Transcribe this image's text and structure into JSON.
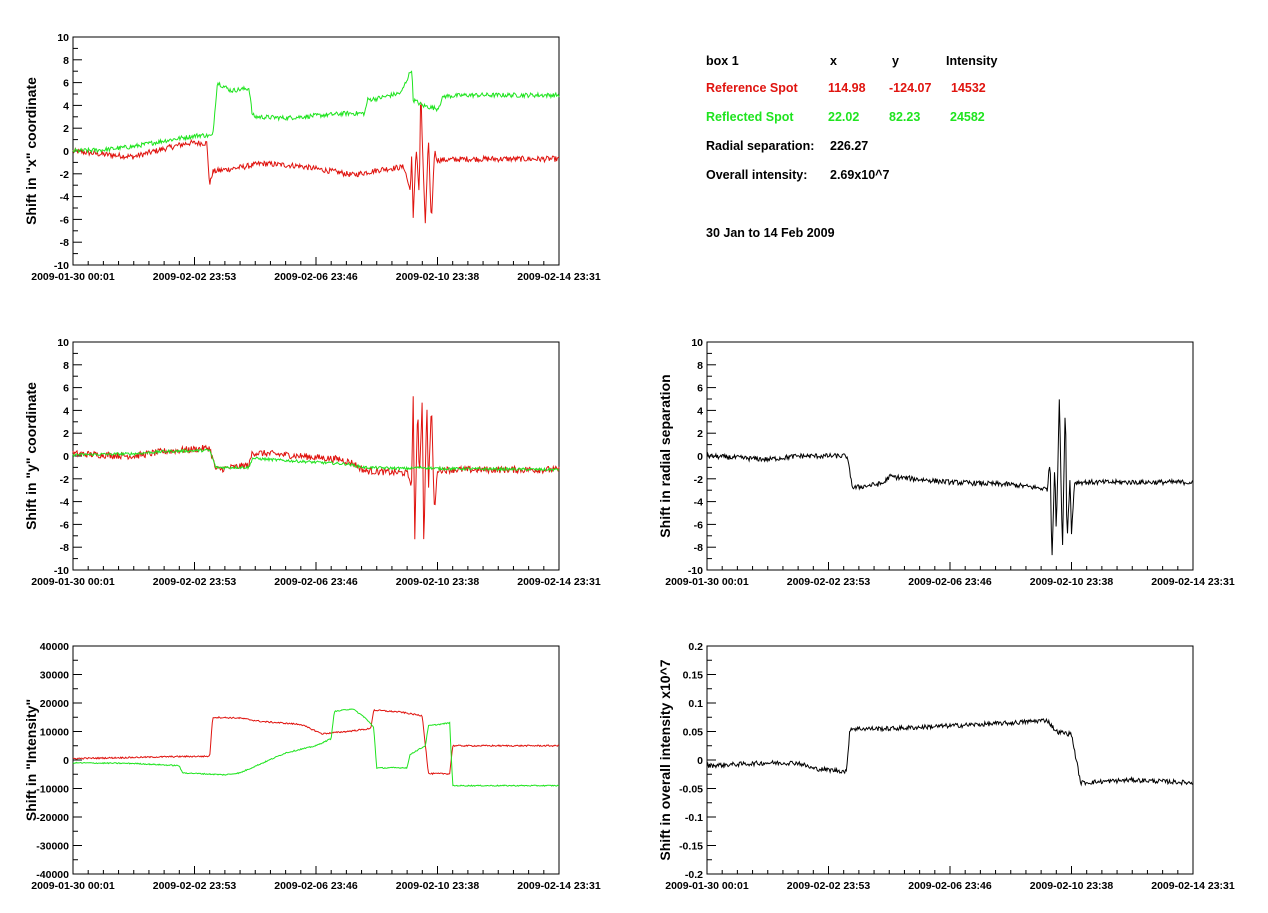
{
  "colors": {
    "reference": "#e0140f",
    "reflected": "#1fe41f",
    "axis": "#000000",
    "background": "#ffffff"
  },
  "info": {
    "box_label": "box 1",
    "col_x": "x",
    "col_y": "y",
    "col_intensity": "Intensity",
    "reference": {
      "label": "Reference Spot",
      "x": "114.98",
      "y": "-124.07",
      "intensity": "14532"
    },
    "reflected": {
      "label": "Reflected Spot",
      "x": "22.02",
      "y": "82.23",
      "intensity": "24582"
    },
    "radial_label": "Radial separation:",
    "radial_value": "226.27",
    "overall_label": "Overall intensity:",
    "overall_value": "2.69x10^7",
    "date_range": "30 Jan to 14 Feb 2009"
  },
  "x_tick_labels": [
    "2009-01-30 00:01",
    "2009-02-02 23:53",
    "2009-02-06 23:46",
    "2009-02-10 23:38",
    "2009-02-14 23:31"
  ],
  "chart_data": [
    {
      "id": "x-shift",
      "type": "line",
      "ylabel": "Shift in \"x\" coordinate",
      "ylim": [
        -10,
        10
      ],
      "y_ticks": [
        -10,
        -8,
        -6,
        -4,
        -2,
        0,
        2,
        4,
        6,
        8,
        10
      ],
      "xlim": [
        0,
        16
      ],
      "series": [
        {
          "name": "Reference Spot",
          "color": "#e0140f",
          "noise": 0.25,
          "points": [
            [
              0,
              0
            ],
            [
              1,
              -0.3
            ],
            [
              2,
              -0.5
            ],
            [
              3,
              0.2
            ],
            [
              3.8,
              0.7
            ],
            [
              4.4,
              0.7
            ],
            [
              4.5,
              -3.0
            ],
            [
              4.6,
              -1.8
            ],
            [
              5.6,
              -1.4
            ],
            [
              6.2,
              -1.1
            ],
            [
              7.4,
              -1.3
            ],
            [
              8.8,
              -1.9
            ],
            [
              9.2,
              -2.1
            ],
            [
              10.2,
              -1.6
            ],
            [
              10.9,
              -1.4
            ],
            [
              11.1,
              -3.5
            ],
            [
              11.15,
              -0.3
            ],
            [
              11.2,
              -6.0
            ],
            [
              11.3,
              0.4
            ],
            [
              11.4,
              -4.0
            ],
            [
              11.45,
              6.0
            ],
            [
              11.5,
              0.5
            ],
            [
              11.6,
              -6.3
            ],
            [
              11.7,
              1.0
            ],
            [
              11.8,
              -6.4
            ],
            [
              11.9,
              0.0
            ],
            [
              12.0,
              -0.8
            ],
            [
              13,
              -0.7
            ],
            [
              16,
              -0.7
            ]
          ]
        },
        {
          "name": "Reflected Spot",
          "color": "#1fe41f",
          "noise": 0.2,
          "points": [
            [
              0,
              0
            ],
            [
              1,
              0.1
            ],
            [
              2,
              0.4
            ],
            [
              3,
              0.9
            ],
            [
              4.2,
              1.4
            ],
            [
              4.6,
              1.3
            ],
            [
              4.75,
              6.0
            ],
            [
              5.2,
              5.3
            ],
            [
              5.8,
              5.5
            ],
            [
              5.9,
              3.2
            ],
            [
              6,
              3.0
            ],
            [
              7,
              2.9
            ],
            [
              9,
              3.3
            ],
            [
              9.6,
              3.3
            ],
            [
              9.7,
              4.5
            ],
            [
              10,
              4.6
            ],
            [
              10.8,
              5.1
            ],
            [
              11.15,
              7.2
            ],
            [
              11.2,
              4.5
            ],
            [
              11.5,
              4.0
            ],
            [
              12,
              3.7
            ],
            [
              12.2,
              4.8
            ],
            [
              13,
              4.9
            ],
            [
              16,
              4.9
            ]
          ]
        }
      ]
    },
    {
      "id": "y-shift",
      "type": "line",
      "ylabel": "Shift in \"y\" coordinate",
      "ylim": [
        -10,
        10
      ],
      "y_ticks": [
        -10,
        -8,
        -6,
        -4,
        -2,
        0,
        2,
        4,
        6,
        8,
        10
      ],
      "xlim": [
        0,
        16
      ],
      "series": [
        {
          "name": "Reference Spot",
          "color": "#e0140f",
          "noise": 0.3,
          "points": [
            [
              0,
              0.2
            ],
            [
              1,
              0.1
            ],
            [
              2,
              0.0
            ],
            [
              3,
              0.4
            ],
            [
              4.5,
              0.7
            ],
            [
              4.7,
              -1.2
            ],
            [
              5.8,
              -0.8
            ],
            [
              5.9,
              0.3
            ],
            [
              7,
              0.1
            ],
            [
              8.8,
              -0.3
            ],
            [
              9.2,
              -0.6
            ],
            [
              9.6,
              -1.3
            ],
            [
              11,
              -1.5
            ],
            [
              11.15,
              -2.5
            ],
            [
              11.2,
              5.5
            ],
            [
              11.25,
              -7.5
            ],
            [
              11.35,
              4.5
            ],
            [
              11.4,
              -2.0
            ],
            [
              11.5,
              5.0
            ],
            [
              11.55,
              -8.0
            ],
            [
              11.65,
              4.8
            ],
            [
              11.7,
              -3.0
            ],
            [
              11.8,
              4.5
            ],
            [
              11.9,
              -5.0
            ],
            [
              12,
              -1.2
            ],
            [
              16,
              -1.2
            ]
          ]
        },
        {
          "name": "Reflected Spot",
          "color": "#1fe41f",
          "noise": 0.12,
          "points": [
            [
              0,
              0.1
            ],
            [
              2,
              0.2
            ],
            [
              3,
              0.4
            ],
            [
              4.5,
              0.5
            ],
            [
              4.7,
              -1.0
            ],
            [
              5.8,
              -1.0
            ],
            [
              5.9,
              -0.2
            ],
            [
              7,
              -0.4
            ],
            [
              9,
              -0.7
            ],
            [
              9.6,
              -1.0
            ],
            [
              11,
              -1.1
            ],
            [
              11.5,
              -1.0
            ],
            [
              12,
              -1.1
            ],
            [
              16,
              -1.2
            ]
          ]
        }
      ]
    },
    {
      "id": "radial-shift",
      "type": "line",
      "ylabel": "Shift in radial separation",
      "ylim": [
        -10,
        10
      ],
      "y_ticks": [
        -10,
        -8,
        -6,
        -4,
        -2,
        0,
        2,
        4,
        6,
        8,
        10
      ],
      "xlim": [
        0,
        16
      ],
      "series": [
        {
          "name": "",
          "color": "#000000",
          "noise": 0.22,
          "points": [
            [
              0,
              0
            ],
            [
              2,
              -0.3
            ],
            [
              3,
              0.0
            ],
            [
              4.6,
              0.0
            ],
            [
              4.8,
              -2.8
            ],
            [
              5.8,
              -2.4
            ],
            [
              6,
              -1.8
            ],
            [
              8,
              -2.3
            ],
            [
              10,
              -2.5
            ],
            [
              11.2,
              -2.9
            ],
            [
              11.3,
              -0.3
            ],
            [
              11.35,
              -9.5
            ],
            [
              11.45,
              -0.5
            ],
            [
              11.5,
              -7.0
            ],
            [
              11.6,
              5.0
            ],
            [
              11.7,
              -8.5
            ],
            [
              11.8,
              5.2
            ],
            [
              11.85,
              -7.5
            ],
            [
              11.95,
              -2.0
            ],
            [
              12,
              -6.8
            ],
            [
              12.1,
              -2.3
            ],
            [
              13,
              -2.3
            ],
            [
              16,
              -2.3
            ]
          ]
        }
      ]
    },
    {
      "id": "intensity-shift",
      "type": "line",
      "ylabel": "Shift in \"Intensity\"",
      "ylim": [
        -40000,
        40000
      ],
      "y_ticks": [
        -40000,
        -30000,
        -20000,
        -10000,
        0,
        10000,
        20000,
        30000,
        40000
      ],
      "xlim": [
        0,
        16
      ],
      "series": [
        {
          "name": "Reference Spot",
          "color": "#e0140f",
          "noise": 250,
          "points": [
            [
              0,
              500
            ],
            [
              2,
              900
            ],
            [
              3.4,
              1200
            ],
            [
              4.5,
              1300
            ],
            [
              4.6,
              15000
            ],
            [
              5.5,
              14700
            ],
            [
              6.2,
              13500
            ],
            [
              7.5,
              12500
            ],
            [
              8.2,
              9200
            ],
            [
              9,
              10000
            ],
            [
              9.8,
              11000
            ],
            [
              9.9,
              17500
            ],
            [
              10.8,
              16800
            ],
            [
              11.5,
              15500
            ],
            [
              11.7,
              -4800
            ],
            [
              12.4,
              -4800
            ],
            [
              12.5,
              5000
            ],
            [
              16,
              5000
            ]
          ]
        },
        {
          "name": "Reflected Spot",
          "color": "#1fe41f",
          "noise": 200,
          "points": [
            [
              0,
              -1000
            ],
            [
              2,
              -1200
            ],
            [
              3.5,
              -2000
            ],
            [
              3.6,
              -4500
            ],
            [
              5,
              -5200
            ],
            [
              5.5,
              -4500
            ],
            [
              7,
              2500
            ],
            [
              8,
              5000
            ],
            [
              8.5,
              7500
            ],
            [
              8.6,
              17000
            ],
            [
              9.2,
              18000
            ],
            [
              9.6,
              15000
            ],
            [
              9.9,
              11500
            ],
            [
              10,
              -2800
            ],
            [
              11,
              -2700
            ],
            [
              11.1,
              2000
            ],
            [
              11.6,
              5000
            ],
            [
              11.7,
              12000
            ],
            [
              12.4,
              13000
            ],
            [
              12.5,
              -9000
            ],
            [
              16,
              -9000
            ]
          ]
        }
      ]
    },
    {
      "id": "overall-intensity-shift",
      "type": "line",
      "ylabel": "Shift in overall intensity x10^7",
      "ylim": [
        -0.2,
        0.2
      ],
      "y_ticks": [
        -0.2,
        -0.15,
        -0.1,
        -0.05,
        0,
        0.05,
        0.1,
        0.15,
        0.2
      ],
      "xlim": [
        0,
        16
      ],
      "series": [
        {
          "name": "",
          "color": "#000000",
          "noise": 0.004,
          "points": [
            [
              0,
              -0.01
            ],
            [
              2,
              -0.005
            ],
            [
              3,
              -0.005
            ],
            [
              3.5,
              -0.015
            ],
            [
              4.6,
              -0.02
            ],
            [
              4.7,
              0.055
            ],
            [
              6,
              0.055
            ],
            [
              8,
              0.06
            ],
            [
              10,
              0.065
            ],
            [
              11.2,
              0.07
            ],
            [
              11.5,
              0.05
            ],
            [
              12,
              0.045
            ],
            [
              12.3,
              -0.04
            ],
            [
              14,
              -0.035
            ],
            [
              16,
              -0.04
            ]
          ]
        }
      ]
    }
  ]
}
